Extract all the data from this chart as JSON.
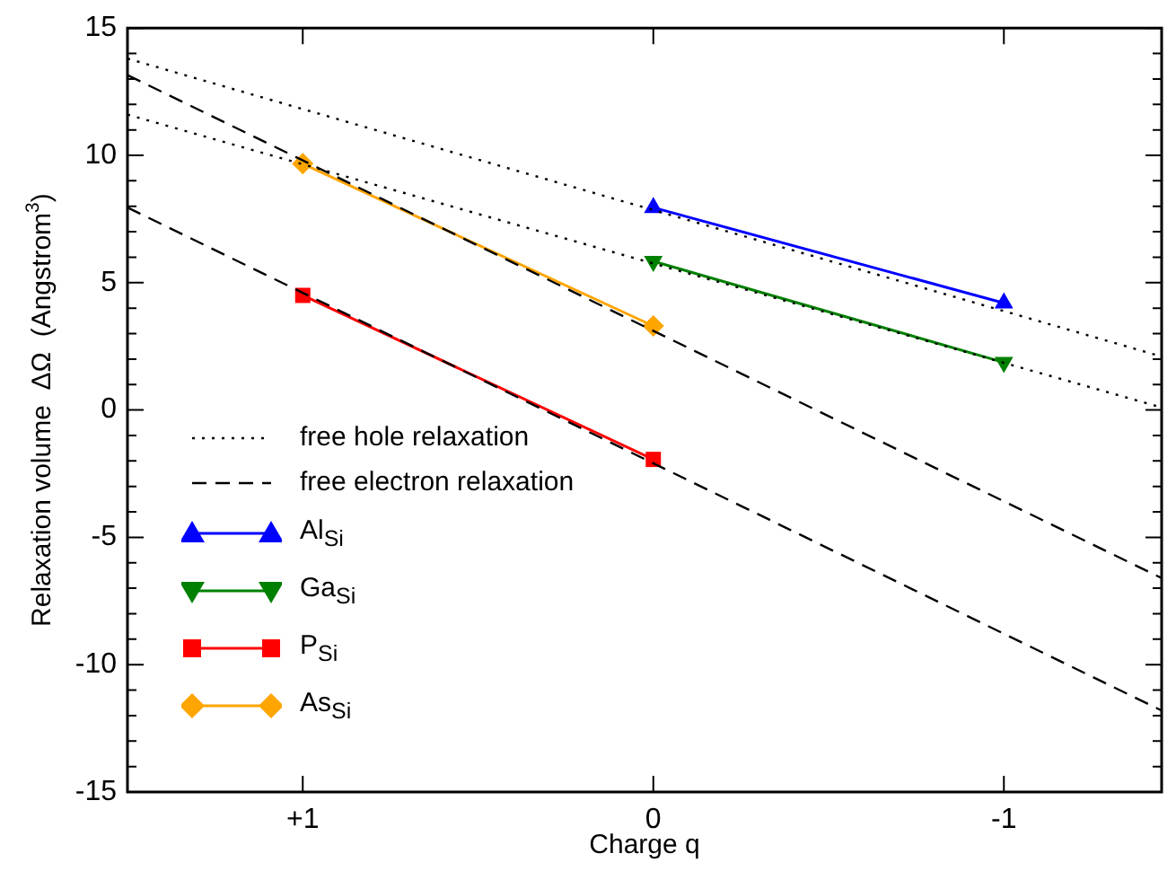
{
  "chart_data": {
    "type": "line",
    "xlabel": "Charge q",
    "ylabel": "Relaxation volume  ΔΩ  (Angstrom$^{3}$)",
    "xlim": [
      1.5,
      -1.45
    ],
    "xticks": [
      {
        "value": 1,
        "label": "+1"
      },
      0,
      -1
    ],
    "ylim": [
      -15,
      15
    ],
    "yticks": [
      -15,
      {
        "value": -14,
        "label": null
      },
      {
        "value": -13,
        "label": null
      },
      {
        "value": -12,
        "label": null
      },
      {
        "value": -11,
        "label": null
      },
      -10,
      {
        "value": -9,
        "label": null
      },
      {
        "value": -8,
        "label": null
      },
      {
        "value": -7,
        "label": null
      },
      {
        "value": -6,
        "label": null
      },
      -5,
      {
        "value": -4,
        "label": null
      },
      {
        "value": -3,
        "label": null
      },
      {
        "value": -2,
        "label": null
      },
      {
        "value": -1,
        "label": null
      },
      0,
      {
        "value": 1,
        "label": null
      },
      {
        "value": 2,
        "label": null
      },
      {
        "value": 3,
        "label": null
      },
      {
        "value": 4,
        "label": null
      },
      5,
      {
        "value": 6,
        "label": null
      },
      {
        "value": 7,
        "label": null
      },
      {
        "value": 8,
        "label": null
      },
      {
        "value": 9,
        "label": null
      },
      10,
      {
        "value": 11,
        "label": null
      },
      {
        "value": 12,
        "label": null
      },
      {
        "value": 13,
        "label": null
      },
      {
        "value": 14,
        "label": null
      },
      15
    ],
    "grid": false,
    "legend": "left",
    "series": [
      {
        "name": "free hole relaxation",
        "color": "#000000",
        "line_style": "dotted",
        "marker": "none",
        "x": [
          1.5,
          -1.45
        ],
        "values": [
          13.8,
          2.1
        ]
      },
      {
        "color": "#000000",
        "line_style": "dotted",
        "marker": "none",
        "x": [
          1.5,
          -1.45
        ],
        "values": [
          11.6,
          0.1
        ]
      },
      {
        "name": "free electron relaxation",
        "color": "#000000",
        "line_style": "dashed",
        "marker": "none",
        "x": [
          1.5,
          -1.45
        ],
        "values": [
          13.15,
          -6.6
        ]
      },
      {
        "color": "#000000",
        "line_style": "dashed",
        "marker": "none",
        "x": [
          1.5,
          -1.45
        ],
        "values": [
          7.95,
          -11.8
        ]
      },
      {
        "name": "Al$_{Si}$",
        "color": "#0000ff",
        "line_style": "solid",
        "marker": "triangle",
        "x": [
          0,
          -1
        ],
        "values": [
          7.95,
          4.2
        ]
      },
      {
        "name": "Ga$_{Si}$",
        "color": "#008000",
        "line_style": "solid",
        "marker": "triangle-down",
        "x": [
          0,
          -1
        ],
        "values": [
          5.84,
          1.87
        ]
      },
      {
        "name": "P$_{Si}$",
        "color": "#ff0000",
        "line_style": "solid",
        "marker": "square",
        "x": [
          1,
          0
        ],
        "values": [
          4.5,
          -1.94
        ]
      },
      {
        "name": "As$_{Si}$",
        "color": "#ffa500",
        "line_style": "solid",
        "marker": "diamond",
        "x": [
          1,
          0
        ],
        "values": [
          9.67,
          3.3
        ]
      }
    ]
  }
}
